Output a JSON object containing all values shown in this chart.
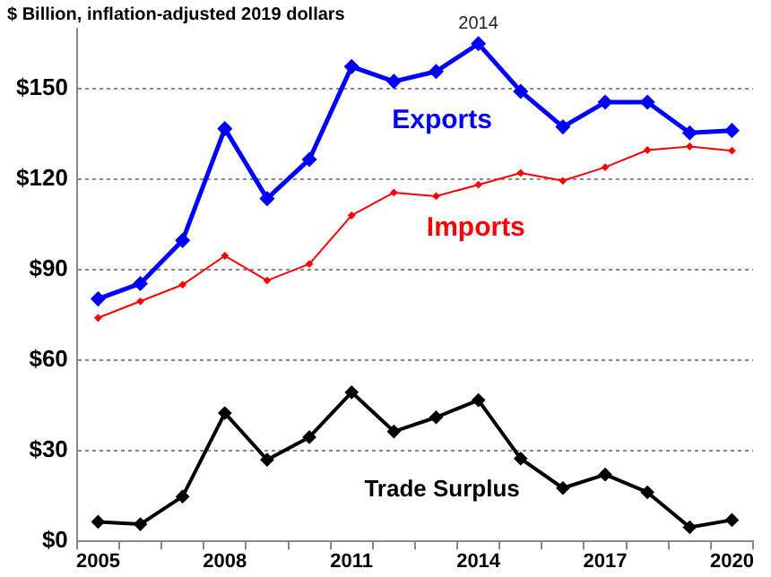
{
  "chart_data": {
    "type": "line",
    "title": "$ Billion, inflation-adjusted 2019 dollars",
    "categories": [
      "2005",
      null,
      null,
      "2008",
      null,
      null,
      "2011",
      null,
      null,
      "2014",
      null,
      null,
      "2017",
      null,
      null,
      "2020"
    ],
    "series": [
      {
        "name": "Exports",
        "color": "#0000ff",
        "values": [
          80.3,
          85.4,
          99.7,
          136.8,
          113.6,
          126.6,
          157.4,
          152.5,
          155.8,
          165,
          149.2,
          137.4,
          145.6,
          145.6,
          135.4,
          136.2
        ]
      },
      {
        "name": "Imports",
        "color": "#ff0000",
        "values": [
          74,
          79.5,
          85,
          94.6,
          86.4,
          91.9,
          108,
          115.6,
          114.4,
          118.2,
          122.1,
          119.5,
          124,
          129.7,
          130.9,
          129.5
        ]
      },
      {
        "name": "Trade Surplus",
        "color": "#000000",
        "values": [
          6.3,
          5.5,
          14.7,
          42.4,
          26.9,
          34.4,
          49.3,
          36.3,
          41,
          46.7,
          27.3,
          17.5,
          22,
          16.1,
          4.5,
          6.9
        ]
      }
    ],
    "ylim": [
      0,
      170
    ],
    "yticks": [
      {
        "value": 0,
        "label": "$0"
      },
      {
        "value": 30,
        "label": "$30"
      },
      {
        "value": 60,
        "label": "$60"
      },
      {
        "value": 90,
        "label": "$90"
      },
      {
        "value": 120,
        "label": "$120"
      },
      {
        "value": 150,
        "label": "$150"
      }
    ],
    "grid": "y",
    "legend": false,
    "marker": "diamond",
    "line_style": "solid",
    "annotations": [
      {
        "text": "2014",
        "x": "2014",
        "y": 165
      }
    ]
  }
}
